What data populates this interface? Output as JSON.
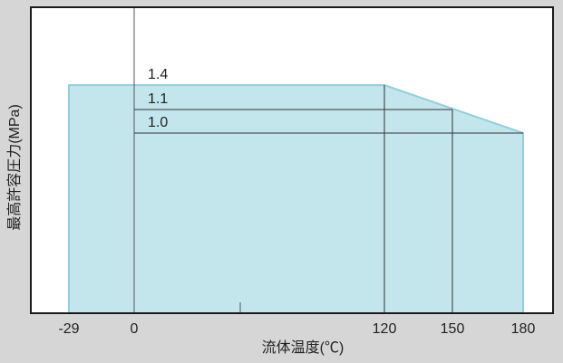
{
  "chart_data": {
    "type": "area",
    "xlabel": "流体温度(℃)",
    "ylabel": "最高許容圧力(MPa)",
    "x_ticks": [
      "-29",
      "0",
      "120",
      "150",
      "180"
    ],
    "series": [
      {
        "x": [
          -29,
          120,
          180
        ],
        "y": [
          1.4,
          1.4,
          1.0
        ]
      }
    ],
    "reference_lines": [
      {
        "label": "1.4",
        "y": 1.4,
        "x_to": 120
      },
      {
        "label": "1.1",
        "y": 1.1,
        "x_to": 150
      },
      {
        "label": "1.0",
        "y": 1.0,
        "x_to": 180
      }
    ],
    "grid": false,
    "colors": {
      "fill": "#c3e6ec",
      "edge": "#8fd0dc",
      "background": "#d6d6d6",
      "plot": "#ffffff"
    }
  }
}
